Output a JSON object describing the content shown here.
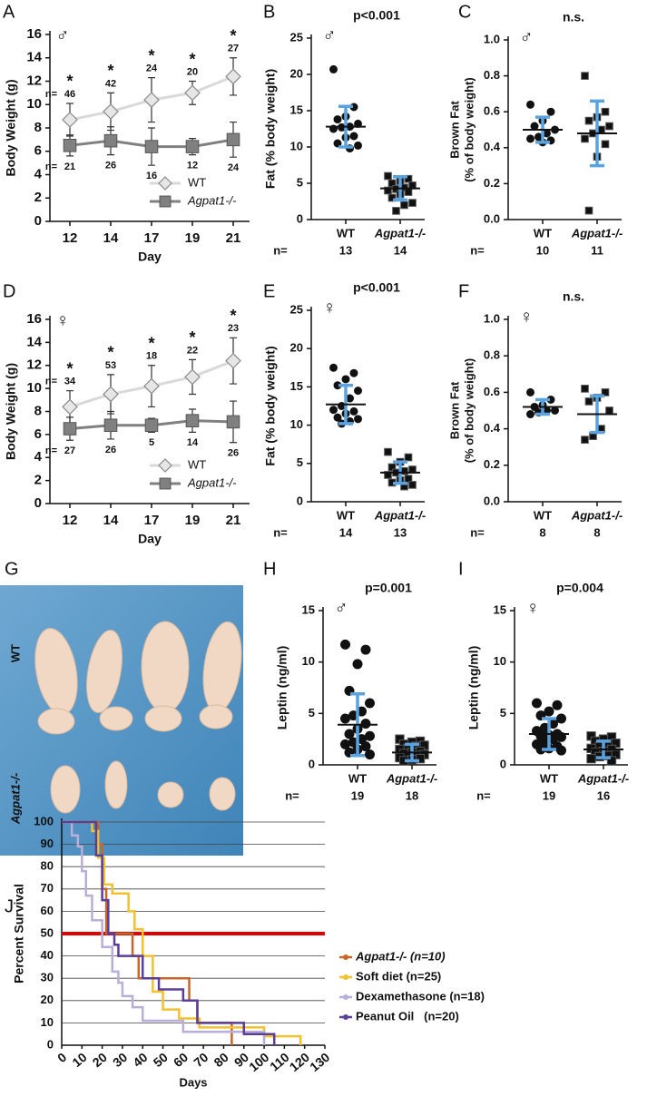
{
  "chart_data": [
    {
      "panel": "A",
      "type": "line",
      "sex": "♂",
      "ylabel": "Body Weight (g)",
      "xlabel": "Day",
      "categories": [
        "12",
        "14",
        "17",
        "19",
        "21"
      ],
      "ylim": [
        0,
        16
      ],
      "yticks": [
        0,
        2,
        4,
        6,
        8,
        10,
        12,
        14,
        16
      ],
      "n_label": "n=",
      "legend": "lower right",
      "series": [
        {
          "name": "WT",
          "color": "#d9d9d9",
          "marker": "diamond",
          "values": [
            8.7,
            9.4,
            10.4,
            11.0,
            12.4
          ],
          "errors": [
            1.4,
            1.6,
            1.9,
            1.0,
            1.6
          ],
          "n": [
            46,
            42,
            24,
            20,
            27
          ],
          "significance": [
            "*",
            "*",
            "*",
            "*",
            "*"
          ]
        },
        {
          "name": "Agpat1-/-",
          "color": "#808080",
          "marker": "square",
          "values": [
            6.5,
            6.9,
            6.4,
            6.4,
            7.0
          ],
          "errors": [
            0.9,
            1.2,
            1.6,
            0.7,
            1.5
          ],
          "n": [
            21,
            26,
            16,
            12,
            24
          ]
        }
      ]
    },
    {
      "panel": "B",
      "type": "strip",
      "sex": "♂",
      "title": "p<0.001",
      "ylabel": "Fat (% body weight)",
      "ylim": [
        0,
        25
      ],
      "yticks": [
        0,
        5,
        10,
        15,
        20,
        25
      ],
      "n_label": "n=",
      "error_color": "#5ba3e0",
      "groups": [
        {
          "name": "WT",
          "marker": "circle",
          "points": [
            20.7,
            15.5,
            14.2,
            13.8,
            13.2,
            12.8,
            12.7,
            12.5,
            11.5,
            11.3,
            10.5,
            10.2,
            9.8
          ],
          "mean": 12.8,
          "sd": 2.8,
          "n": 13
        },
        {
          "name": "Agpat1-/-",
          "marker": "square",
          "points": [
            6,
            5.6,
            5.3,
            5,
            4.7,
            4.4,
            4.2,
            4,
            3.8,
            3.5,
            3,
            2.3,
            2,
            1.2
          ],
          "mean": 4.3,
          "sd": 1.6,
          "n": 14
        }
      ]
    },
    {
      "panel": "C",
      "type": "strip",
      "sex": "♂",
      "title": "n.s.",
      "ylabel": [
        "Brown Fat",
        "(% of body weight)"
      ],
      "ylim": [
        0,
        1
      ],
      "yticks": [
        {
          "value": 0,
          "label": "0.0"
        },
        0.2,
        0.4,
        0.6,
        0.8,
        {
          "value": 1,
          "label": "1.0"
        }
      ],
      "n_label": "n=",
      "error_color": "#5ba3e0",
      "groups": [
        {
          "name": "WT",
          "marker": "circle",
          "points": [
            0.64,
            0.6,
            0.55,
            0.52,
            0.5,
            0.48,
            0.46,
            0.45,
            0.44,
            0.43
          ],
          "mean": 0.5,
          "sd": 0.07,
          "n": 10
        },
        {
          "name": "Agpat1-/-",
          "marker": "square",
          "points": [
            0.8,
            0.6,
            0.57,
            0.55,
            0.52,
            0.5,
            0.48,
            0.45,
            0.42,
            0.35,
            0.05
          ],
          "mean": 0.48,
          "sd": 0.18,
          "n": 11
        }
      ]
    },
    {
      "panel": "D",
      "type": "line",
      "sex": "♀",
      "ylabel": "Body Weight (g)",
      "xlabel": "Day",
      "categories": [
        "12",
        "14",
        "17",
        "19",
        "21"
      ],
      "ylim": [
        0,
        16
      ],
      "yticks": [
        0,
        2,
        4,
        6,
        8,
        10,
        12,
        14,
        16
      ],
      "n_label": "n=",
      "legend": "lower right",
      "series": [
        {
          "name": "WT",
          "color": "#d9d9d9",
          "marker": "diamond",
          "values": [
            8.4,
            9.5,
            10.2,
            11.0,
            12.4
          ],
          "errors": [
            1.4,
            1.7,
            1.8,
            1.5,
            2.0
          ],
          "n": [
            34,
            53,
            18,
            22,
            23
          ],
          "significance": [
            "*",
            "*",
            "*",
            "*",
            "*"
          ]
        },
        {
          "name": "Agpat1-/-",
          "color": "#808080",
          "marker": "square",
          "values": [
            6.5,
            6.8,
            6.8,
            7.2,
            7.1
          ],
          "errors": [
            1.0,
            1.2,
            0.6,
            1.0,
            1.8
          ],
          "n": [
            27,
            26,
            5,
            14,
            26
          ]
        }
      ]
    },
    {
      "panel": "E",
      "type": "strip",
      "sex": "♀",
      "title": "p<0.001",
      "ylabel": "Fat (% body weight)",
      "ylim": [
        0,
        25
      ],
      "yticks": [
        0,
        5,
        10,
        15,
        20,
        25
      ],
      "n_label": "n=",
      "error_color": "#5ba3e0",
      "groups": [
        {
          "name": "WT",
          "marker": "circle",
          "points": [
            17.5,
            16.8,
            16,
            15.2,
            14.5,
            13.5,
            12.5,
            12,
            11.8,
            11.5,
            11,
            10.8,
            10.5,
            10.2
          ],
          "mean": 12.7,
          "sd": 2.5,
          "n": 14
        },
        {
          "name": "Agpat1-/-",
          "marker": "square",
          "points": [
            6.5,
            5.8,
            5.2,
            4.5,
            4.2,
            4,
            3.8,
            3.5,
            3,
            2.8,
            2.5,
            2.2,
            2
          ],
          "mean": 3.8,
          "sd": 1.4,
          "n": 13
        }
      ]
    },
    {
      "panel": "F",
      "type": "strip",
      "sex": "♀",
      "title": "n.s.",
      "ylabel": [
        "Brown Fat",
        "(% of body weight)"
      ],
      "ylim": [
        0,
        1
      ],
      "yticks": [
        {
          "value": 0,
          "label": "0.0"
        },
        0.2,
        0.4,
        0.6,
        0.8,
        {
          "value": 1,
          "label": "1.0"
        }
      ],
      "n_label": "n=",
      "error_color": "#5ba3e0",
      "groups": [
        {
          "name": "WT",
          "marker": "circle",
          "points": [
            0.6,
            0.56,
            0.53,
            0.52,
            0.5,
            0.5,
            0.49,
            0.48
          ],
          "mean": 0.52,
          "sd": 0.04,
          "n": 8
        },
        {
          "name": "Agpat1-/-",
          "marker": "square",
          "points": [
            0.62,
            0.6,
            0.57,
            0.55,
            0.5,
            0.4,
            0.36,
            0.34
          ],
          "mean": 0.48,
          "sd": 0.1,
          "n": 8
        }
      ]
    },
    {
      "panel": "H",
      "type": "strip",
      "sex": "♂",
      "title": "p=0.001",
      "ylabel": "Leptin (ng/ml)",
      "ylim": [
        0,
        15
      ],
      "yticks": [
        0,
        5,
        10,
        15
      ],
      "n_label": "n=",
      "error_color": "#5ba3e0",
      "groups": [
        {
          "name": "WT",
          "marker": "circle",
          "points": [
            11.7,
            11.2,
            9.8,
            7.2,
            6,
            5.2,
            4.8,
            4.5,
            4,
            3.5,
            3,
            2.8,
            2.5,
            2.2,
            2,
            1.8,
            1.5,
            1.2,
            1
          ],
          "mean": 3.9,
          "sd": 3.0,
          "n": 19
        },
        {
          "name": "Agpat1-/-",
          "marker": "square",
          "points": [
            2.5,
            2.3,
            2.2,
            2,
            1.9,
            1.8,
            1.6,
            1.5,
            1.3,
            1.2,
            1.1,
            1,
            0.9,
            0.8,
            0.7,
            0.6,
            0.5,
            0.4
          ],
          "mean": 1.2,
          "sd": 0.8,
          "n": 18
        }
      ]
    },
    {
      "panel": "I",
      "type": "strip",
      "sex": "♀",
      "title": "p=0.004",
      "ylabel": "Leptin (ng/ml)",
      "ylim": [
        0,
        15
      ],
      "yticks": [
        0,
        5,
        10,
        15
      ],
      "n_label": "n=",
      "error_color": "#5ba3e0",
      "groups": [
        {
          "name": "WT",
          "marker": "circle",
          "points": [
            6,
            5.8,
            5.2,
            4.8,
            4.5,
            4,
            3.6,
            3.3,
            3,
            2.9,
            2.8,
            2.7,
            2.5,
            2.2,
            2,
            1.8,
            1.6,
            1.5,
            1.4
          ],
          "mean": 3.0,
          "sd": 1.5,
          "n": 19
        },
        {
          "name": "Agpat1-/-",
          "marker": "square",
          "points": [
            2.8,
            2.7,
            2.5,
            2.3,
            2.1,
            2,
            1.8,
            1.6,
            1.5,
            1.3,
            1.2,
            1,
            0.9,
            0.8,
            0.6,
            0.4
          ],
          "mean": 1.5,
          "sd": 0.8,
          "n": 16
        }
      ]
    },
    {
      "panel": "J",
      "type": "survival",
      "ylabel": "Percent  Survival",
      "xlabel": "Days",
      "xlim": [
        0,
        130
      ],
      "xticks": [
        0,
        10,
        20,
        30,
        40,
        50,
        60,
        70,
        80,
        90,
        100,
        110,
        120,
        130
      ],
      "ylim": [
        0,
        100
      ],
      "yticks": [
        0,
        10,
        20,
        30,
        40,
        50,
        60,
        70,
        80,
        90,
        100
      ],
      "grid": true,
      "reference_line": {
        "value": 50,
        "color": "#e00000"
      },
      "legend": "right",
      "series": [
        {
          "name": "Agpat1-/- (n=10)",
          "color": "#c8662a",
          "x": [
            0,
            18,
            18,
            20,
            20,
            22,
            22,
            35,
            35,
            38,
            38,
            63,
            63,
            67,
            67,
            84,
            84
          ],
          "values": [
            100,
            100,
            90,
            90,
            70,
            70,
            50,
            50,
            40,
            40,
            30,
            30,
            20,
            20,
            10,
            10,
            0
          ]
        },
        {
          "name": "Soft diet (n=25)",
          "color": "#f2c12e",
          "x": [
            0,
            15,
            15,
            18,
            18,
            21,
            21,
            25,
            25,
            33,
            33,
            36,
            36,
            40,
            40,
            45,
            45,
            50,
            50,
            58,
            58,
            68,
            68,
            100,
            100,
            118,
            118
          ],
          "values": [
            100,
            100,
            96,
            96,
            84,
            84,
            72,
            72,
            68,
            68,
            60,
            60,
            52,
            52,
            40,
            40,
            24,
            24,
            16,
            16,
            12,
            12,
            8,
            8,
            4,
            4,
            0
          ]
        },
        {
          "name": "Dexamethasone (n=18)",
          "color": "#b9aed8",
          "x": [
            0,
            5,
            5,
            8,
            8,
            10,
            10,
            12,
            12,
            15,
            15,
            20,
            20,
            25,
            25,
            28,
            28,
            30,
            30,
            35,
            35,
            40,
            40,
            60,
            60,
            100,
            100
          ],
          "values": [
            100,
            100,
            94,
            94,
            89,
            89,
            78,
            78,
            67,
            67,
            56,
            56,
            44,
            44,
            33,
            33,
            28,
            28,
            22,
            22,
            17,
            17,
            11,
            11,
            6,
            6,
            0
          ]
        },
        {
          "name": "Peanut Oil   (n=20)",
          "color": "#5a3e9a",
          "x": [
            0,
            17,
            17,
            20,
            20,
            23,
            23,
            26,
            26,
            28,
            28,
            40,
            40,
            48,
            48,
            60,
            60,
            67,
            67,
            90,
            90,
            105,
            105
          ],
          "values": [
            100,
            100,
            85,
            85,
            65,
            65,
            50,
            50,
            45,
            45,
            40,
            40,
            30,
            30,
            25,
            25,
            20,
            20,
            10,
            10,
            5,
            5,
            0
          ]
        }
      ]
    }
  ],
  "photo": {
    "panel": "G",
    "labels": [
      "WT",
      "Agpat1-/-"
    ]
  }
}
